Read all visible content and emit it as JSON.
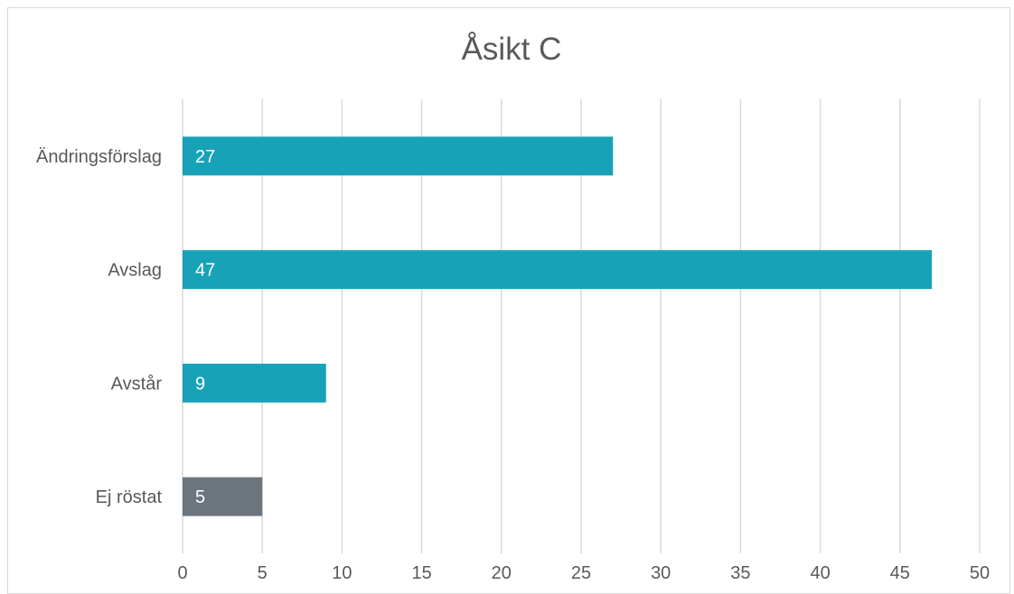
{
  "chart_data": {
    "type": "bar",
    "orientation": "horizontal",
    "title": "Åsikt C",
    "categories": [
      "Ändringsförslag",
      "Avslag",
      "Avstår",
      "Ej röstat"
    ],
    "values": [
      27,
      47,
      9,
      5
    ],
    "bar_colors": [
      "#17a2b8",
      "#17a2b8",
      "#17a2b8",
      "#6c757d"
    ],
    "data_label_color": "#ffffff",
    "xlim": [
      0,
      50
    ],
    "x_ticks": [
      0,
      5,
      10,
      15,
      20,
      25,
      30,
      35,
      40,
      45,
      50
    ],
    "grid": "vertical",
    "legend": "none",
    "xlabel": "",
    "ylabel": ""
  }
}
